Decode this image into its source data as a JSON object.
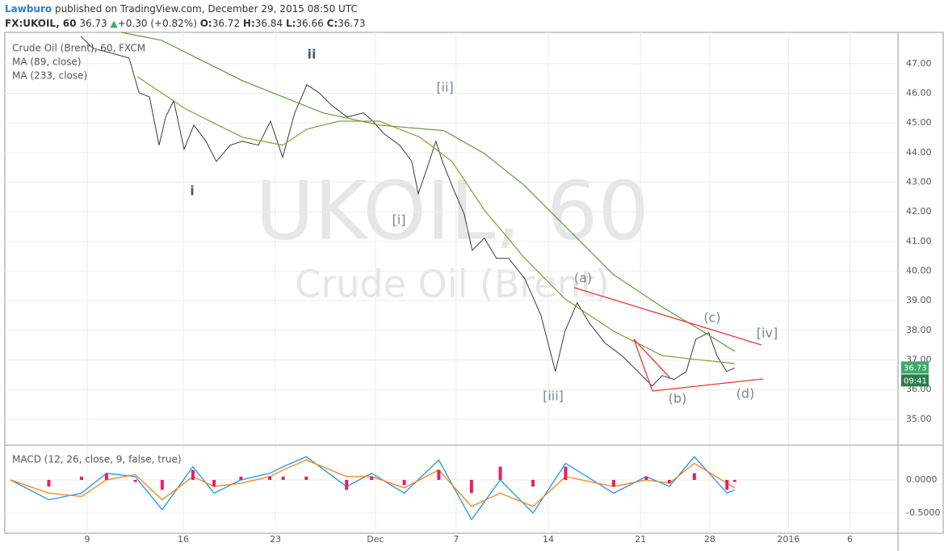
{
  "header": {
    "author": "Lawburo",
    "published": "published on TradingView.com, December 29, 2015 08:50 UTC",
    "symbol": "FX:UKOIL, 60",
    "last": "36.73",
    "arrow": "▲",
    "change": "+0.30 (+0.82%)",
    "ohlc": [
      {
        "label": "O:",
        "value": "36.72"
      },
      {
        "label": "H:",
        "value": "36.84"
      },
      {
        "label": "L:",
        "value": "36.66"
      },
      {
        "label": "C:",
        "value": "36.73"
      }
    ]
  },
  "chart_data": [
    {
      "type": "line",
      "watermark": {
        "symbol": "UKOIL, 60",
        "description": "Crude Oil (Brent)"
      },
      "xlim": [
        0.71,
        47.2
      ],
      "ylim": [
        34.15,
        48.06
      ],
      "yticks": [
        {
          "value": 35,
          "label": "35.00"
        },
        {
          "value": 36,
          "label": "36.00"
        },
        {
          "value": 37,
          "label": "37.00"
        },
        {
          "value": 38,
          "label": "38.00"
        },
        {
          "value": 39,
          "label": "39.00"
        },
        {
          "value": 40,
          "label": "40.00"
        },
        {
          "value": 41,
          "label": "41.00"
        },
        {
          "value": 42,
          "label": "42.00"
        },
        {
          "value": 43,
          "label": "43.00"
        },
        {
          "value": 44,
          "label": "44.00"
        },
        {
          "value": 45,
          "label": "45.00"
        },
        {
          "value": 46,
          "label": "46.00"
        },
        {
          "value": 47,
          "label": "47.00"
        }
      ],
      "grid": true,
      "series": [
        {
          "name": "Crude Oil (Brent), 60, FXCM",
          "color": "#3a3a3a",
          "x": [
            4.66,
            5.29,
            6.13,
            7.18,
            7.69,
            8.24,
            8.74,
            9.08,
            9.5,
            10.04,
            10.55,
            11.18,
            11.72,
            12.44,
            13.07,
            13.91,
            14.54,
            15.17,
            15.8,
            16.43,
            17.06,
            17.69,
            18.53,
            19.37,
            19.87,
            20.42,
            21.26,
            21.89,
            22.23,
            22.73,
            23.15,
            23.49,
            23.99,
            24.62,
            25.04,
            25.67,
            26.3,
            26.93,
            27.77,
            28.61,
            29.37,
            29.87,
            30.5,
            31.13,
            31.97,
            32.82,
            33.66,
            34.41,
            34.92,
            35.55,
            36.18,
            36.68,
            37.35,
            37.77,
            38.28,
            38.7
          ],
          "values": [
            47.93,
            47.52,
            47.38,
            47.19,
            46.02,
            45.88,
            44.25,
            45.2,
            45.75,
            44.11,
            44.93,
            44.38,
            43.7,
            44.25,
            44.38,
            44.25,
            45.06,
            43.84,
            45.34,
            46.29,
            46.02,
            45.61,
            45.2,
            45.34,
            45.06,
            44.65,
            44.25,
            43.7,
            42.61,
            43.56,
            44.38,
            43.7,
            42.88,
            41.93,
            40.7,
            41.11,
            40.43,
            40.43,
            39.75,
            38.52,
            36.61,
            37.97,
            38.93,
            38.25,
            37.56,
            37.15,
            36.61,
            36.12,
            36.47,
            36.34,
            36.61,
            37.7,
            37.92,
            37.15,
            36.61,
            36.73
          ]
        },
        {
          "name": "MA (89, close)",
          "color": "#8a9a3a",
          "x": [
            7.61,
            10.13,
            13.07,
            15.17,
            16.43,
            18.11,
            20.21,
            22.31,
            23.99,
            25.67,
            27.77,
            29.87,
            32.39,
            34.92,
            36.6,
            38.7
          ],
          "values": [
            46.56,
            45.47,
            44.52,
            44.25,
            44.79,
            45.06,
            45.06,
            44.52,
            43.7,
            42.06,
            40.43,
            39.06,
            37.97,
            37.15,
            37.02,
            36.88
          ]
        },
        {
          "name": "MA (233, close)",
          "color": "#5f9a3f",
          "x": [
            6.76,
            8.87,
            13.07,
            17.27,
            20.21,
            23.57,
            25.67,
            27.77,
            29.87,
            32.39,
            34.92,
            37.02,
            38.7
          ],
          "values": [
            48.06,
            47.79,
            46.43,
            45.34,
            44.93,
            44.74,
            43.97,
            42.88,
            41.52,
            39.88,
            38.79,
            37.97,
            37.29
          ]
        }
      ],
      "last_price": {
        "value": 36.73,
        "label": "36.73",
        "color": "#3cab6a"
      },
      "countdown": "09:41",
      "annotations": [
        "i",
        "ii",
        "[i]",
        "[ii]",
        "[iii]",
        "(a)",
        "(b)",
        "(c)",
        "(d)",
        "[iv]"
      ]
    },
    {
      "type": "macd",
      "title": "MACD (12, 26, close, 9, false, true)",
      "xlim": [
        0.71,
        47.2
      ],
      "ylim": [
        -0.805,
        0.512
      ],
      "xticks": [
        {
          "value": 5,
          "label": "9"
        },
        {
          "value": 10,
          "label": "16"
        },
        {
          "value": 14.8,
          "label": "23"
        },
        {
          "value": 20,
          "label": "Dec"
        },
        {
          "value": 24.2,
          "label": "7"
        },
        {
          "value": 29,
          "label": "14"
        },
        {
          "value": 33.8,
          "label": "21"
        },
        {
          "value": 37.4,
          "label": "28"
        },
        {
          "value": 41.5,
          "label": "2016"
        },
        {
          "value": 44.7,
          "label": "6"
        }
      ],
      "yticks": [
        {
          "value": 0,
          "label": "0.0000"
        },
        {
          "value": -0.5,
          "label": "-0.5000"
        }
      ],
      "x": [
        1,
        3,
        4.7,
        6,
        7.5,
        8.9,
        10.5,
        11.6,
        13,
        14.5,
        15.2,
        16.4,
        18.5,
        19.8,
        21.5,
        23.3,
        25,
        26.5,
        28.2,
        29.9,
        32.4,
        34.1,
        35.3,
        36.6,
        38.3,
        38.7
      ],
      "series": [
        {
          "name": "MACD",
          "color": "#2196f3",
          "values": [
            0,
            -0.3,
            -0.2,
            0.1,
            0.05,
            -0.45,
            0.2,
            -0.2,
            0,
            0.1,
            0.2,
            0.35,
            -0.1,
            0.1,
            -0.2,
            0.3,
            -0.6,
            0,
            -0.5,
            0.25,
            -0.2,
            0.05,
            -0.1,
            0.35,
            -0.2,
            -0.15
          ]
        },
        {
          "name": "Signal",
          "color": "#ff7f0e",
          "values": [
            0,
            -0.2,
            -0.25,
            0,
            0.08,
            -0.3,
            0.05,
            -0.1,
            -0.05,
            0.05,
            0.15,
            0.3,
            0.05,
            0.05,
            -0.12,
            0.15,
            -0.4,
            -0.2,
            -0.4,
            0.05,
            -0.1,
            0,
            -0.05,
            0.25,
            -0.05,
            -0.12
          ]
        },
        {
          "name": "Histogram",
          "color": "#e91e63",
          "values": [
            0,
            -0.1,
            0.05,
            0.1,
            -0.03,
            -0.15,
            0.15,
            -0.1,
            0.05,
            0.05,
            0.05,
            0.05,
            -0.15,
            0.05,
            -0.08,
            0.15,
            -0.2,
            0.2,
            -0.1,
            0.2,
            -0.1,
            0.05,
            -0.05,
            0.1,
            -0.15,
            -0.03
          ]
        }
      ]
    }
  ]
}
